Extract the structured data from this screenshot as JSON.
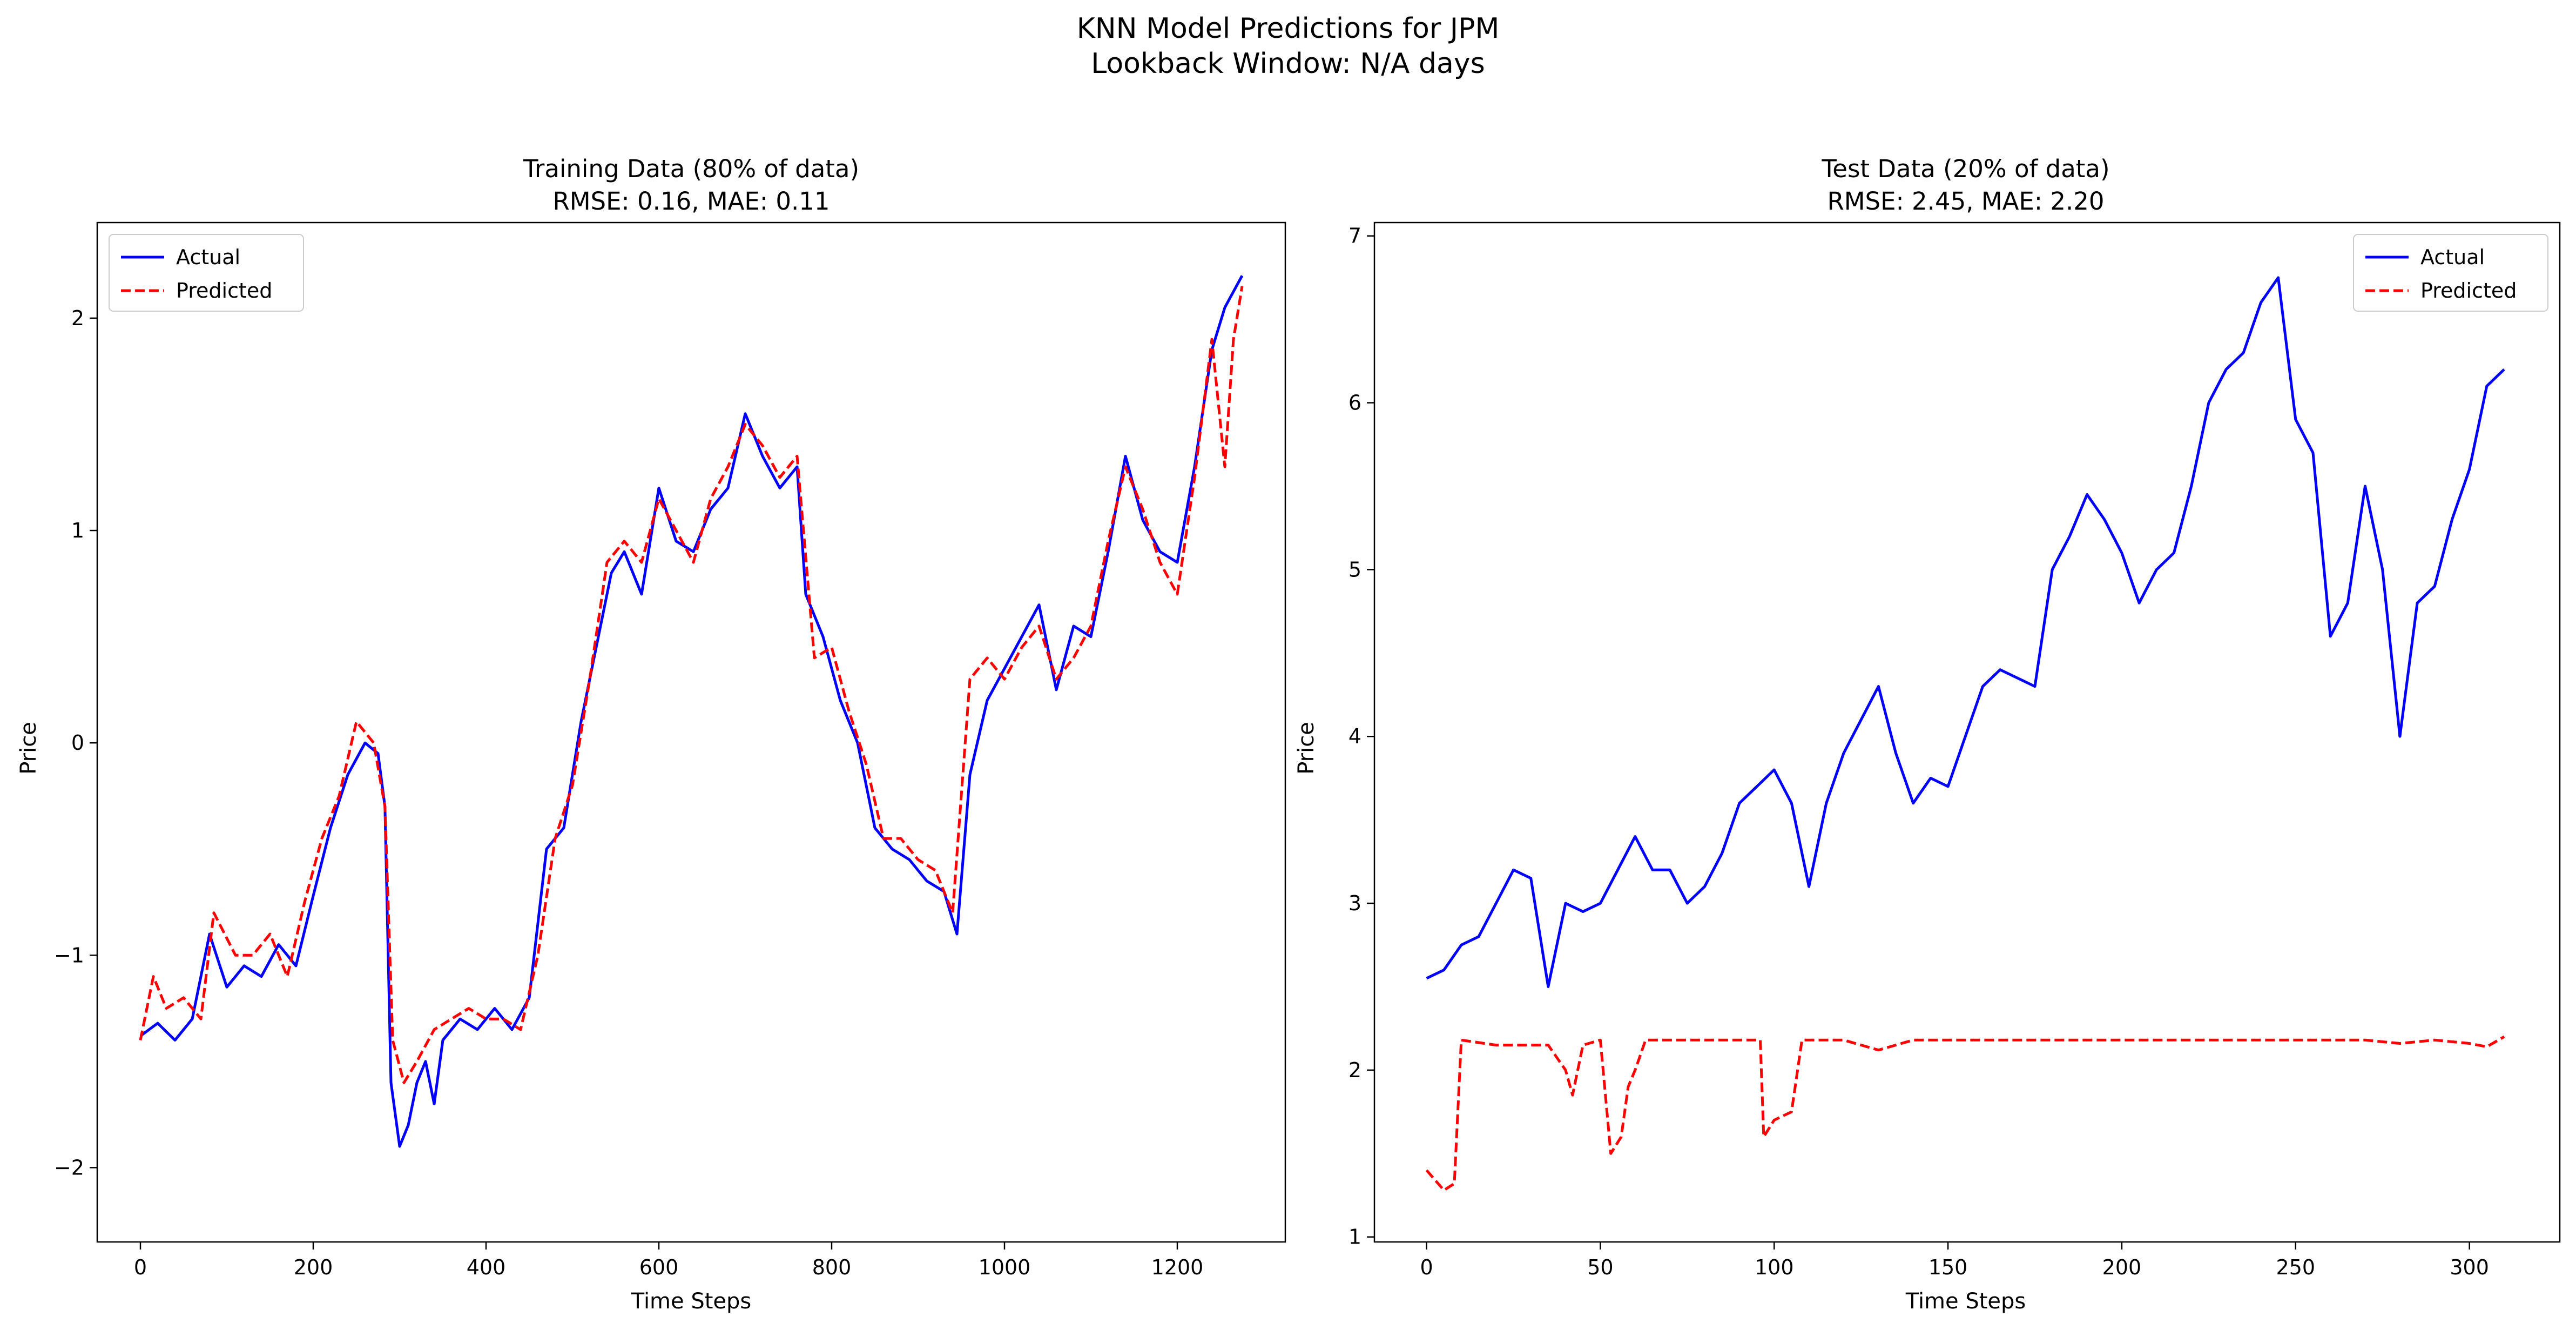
{
  "figure": {
    "title_line1": "KNN Model Predictions for JPM",
    "title_line2": "Lookback Window: N/A days"
  },
  "chart_data": [
    {
      "type": "line",
      "title_line1": "Training Data (80% of data)",
      "title_line2": "RMSE: 0.16, MAE: 0.11",
      "xlabel": "Time Steps",
      "ylabel": "Price",
      "xlim": [
        -50,
        1325
      ],
      "ylim": [
        -2.35,
        2.45
      ],
      "xticks": [
        0,
        200,
        400,
        600,
        800,
        1000,
        1200
      ],
      "yticks": [
        -2,
        -1,
        0,
        1,
        2
      ],
      "legend": {
        "placement": "top-left"
      },
      "grid": false,
      "series": [
        {
          "name": "Actual",
          "color": "#0000ff",
          "style": "solid",
          "points": [
            [
              0,
              -1.38
            ],
            [
              20,
              -1.32
            ],
            [
              40,
              -1.4
            ],
            [
              60,
              -1.3
            ],
            [
              80,
              -0.9
            ],
            [
              100,
              -1.15
            ],
            [
              120,
              -1.05
            ],
            [
              140,
              -1.1
            ],
            [
              160,
              -0.95
            ],
            [
              180,
              -1.05
            ],
            [
              200,
              -0.72
            ],
            [
              220,
              -0.4
            ],
            [
              240,
              -0.15
            ],
            [
              260,
              0.0
            ],
            [
              275,
              -0.05
            ],
            [
              283,
              -0.3
            ],
            [
              290,
              -1.6
            ],
            [
              300,
              -1.9
            ],
            [
              310,
              -1.8
            ],
            [
              320,
              -1.6
            ],
            [
              330,
              -1.5
            ],
            [
              340,
              -1.7
            ],
            [
              350,
              -1.4
            ],
            [
              370,
              -1.3
            ],
            [
              390,
              -1.35
            ],
            [
              410,
              -1.25
            ],
            [
              430,
              -1.35
            ],
            [
              450,
              -1.2
            ],
            [
              470,
              -0.5
            ],
            [
              490,
              -0.4
            ],
            [
              510,
              0.1
            ],
            [
              530,
              0.5
            ],
            [
              545,
              0.8
            ],
            [
              560,
              0.9
            ],
            [
              580,
              0.7
            ],
            [
              600,
              1.2
            ],
            [
              620,
              0.95
            ],
            [
              640,
              0.9
            ],
            [
              660,
              1.1
            ],
            [
              680,
              1.2
            ],
            [
              700,
              1.55
            ],
            [
              720,
              1.35
            ],
            [
              740,
              1.2
            ],
            [
              760,
              1.3
            ],
            [
              770,
              0.7
            ],
            [
              790,
              0.5
            ],
            [
              810,
              0.2
            ],
            [
              830,
              0.0
            ],
            [
              850,
              -0.4
            ],
            [
              870,
              -0.5
            ],
            [
              890,
              -0.55
            ],
            [
              910,
              -0.65
            ],
            [
              930,
              -0.7
            ],
            [
              945,
              -0.9
            ],
            [
              960,
              -0.15
            ],
            [
              980,
              0.2
            ],
            [
              1000,
              0.35
            ],
            [
              1020,
              0.5
            ],
            [
              1040,
              0.65
            ],
            [
              1060,
              0.25
            ],
            [
              1080,
              0.55
            ],
            [
              1100,
              0.5
            ],
            [
              1120,
              0.9
            ],
            [
              1140,
              1.35
            ],
            [
              1160,
              1.05
            ],
            [
              1180,
              0.9
            ],
            [
              1200,
              0.85
            ],
            [
              1220,
              1.3
            ],
            [
              1240,
              1.85
            ],
            [
              1255,
              2.05
            ],
            [
              1275,
              2.2
            ]
          ]
        },
        {
          "name": "Predicted",
          "color": "#ff0000",
          "style": "dashed",
          "points": [
            [
              0,
              -1.4
            ],
            [
              15,
              -1.1
            ],
            [
              30,
              -1.25
            ],
            [
              50,
              -1.2
            ],
            [
              70,
              -1.3
            ],
            [
              85,
              -0.8
            ],
            [
              110,
              -1.0
            ],
            [
              130,
              -1.0
            ],
            [
              150,
              -0.9
            ],
            [
              170,
              -1.1
            ],
            [
              190,
              -0.75
            ],
            [
              210,
              -0.45
            ],
            [
              230,
              -0.25
            ],
            [
              250,
              0.1
            ],
            [
              270,
              0.0
            ],
            [
              283,
              -0.3
            ],
            [
              292,
              -1.4
            ],
            [
              305,
              -1.6
            ],
            [
              320,
              -1.5
            ],
            [
              340,
              -1.35
            ],
            [
              360,
              -1.3
            ],
            [
              380,
              -1.25
            ],
            [
              400,
              -1.3
            ],
            [
              420,
              -1.3
            ],
            [
              440,
              -1.35
            ],
            [
              460,
              -1.0
            ],
            [
              480,
              -0.45
            ],
            [
              500,
              -0.2
            ],
            [
              520,
              0.3
            ],
            [
              540,
              0.85
            ],
            [
              560,
              0.95
            ],
            [
              580,
              0.85
            ],
            [
              600,
              1.15
            ],
            [
              620,
              1.0
            ],
            [
              640,
              0.85
            ],
            [
              660,
              1.15
            ],
            [
              680,
              1.3
            ],
            [
              700,
              1.5
            ],
            [
              720,
              1.4
            ],
            [
              740,
              1.25
            ],
            [
              760,
              1.35
            ],
            [
              780,
              0.4
            ],
            [
              800,
              0.45
            ],
            [
              820,
              0.15
            ],
            [
              840,
              -0.1
            ],
            [
              860,
              -0.45
            ],
            [
              880,
              -0.45
            ],
            [
              900,
              -0.55
            ],
            [
              920,
              -0.6
            ],
            [
              940,
              -0.8
            ],
            [
              960,
              0.3
            ],
            [
              980,
              0.4
            ],
            [
              1000,
              0.3
            ],
            [
              1020,
              0.45
            ],
            [
              1040,
              0.55
            ],
            [
              1060,
              0.3
            ],
            [
              1080,
              0.4
            ],
            [
              1100,
              0.55
            ],
            [
              1120,
              0.95
            ],
            [
              1140,
              1.3
            ],
            [
              1160,
              1.1
            ],
            [
              1180,
              0.85
            ],
            [
              1200,
              0.7
            ],
            [
              1220,
              1.25
            ],
            [
              1240,
              1.9
            ],
            [
              1255,
              1.3
            ],
            [
              1265,
              1.9
            ],
            [
              1275,
              2.15
            ]
          ]
        }
      ]
    },
    {
      "type": "line",
      "title_line1": "Test Data (20% of data)",
      "title_line2": "RMSE: 2.45, MAE: 2.20",
      "xlabel": "Time Steps",
      "ylabel": "Price",
      "xlim": [
        -15,
        326
      ],
      "ylim": [
        0.97,
        7.08
      ],
      "xticks": [
        0,
        50,
        100,
        150,
        200,
        250,
        300
      ],
      "yticks": [
        1,
        2,
        3,
        4,
        5,
        6,
        7
      ],
      "legend": {
        "placement": "top-right"
      },
      "grid": false,
      "series": [
        {
          "name": "Actual",
          "color": "#0000ff",
          "style": "solid",
          "points": [
            [
              0,
              2.55
            ],
            [
              5,
              2.6
            ],
            [
              10,
              2.75
            ],
            [
              15,
              2.8
            ],
            [
              20,
              3.0
            ],
            [
              25,
              3.2
            ],
            [
              30,
              3.15
            ],
            [
              35,
              2.5
            ],
            [
              40,
              3.0
            ],
            [
              45,
              2.95
            ],
            [
              50,
              3.0
            ],
            [
              55,
              3.2
            ],
            [
              60,
              3.4
            ],
            [
              65,
              3.2
            ],
            [
              70,
              3.2
            ],
            [
              75,
              3.0
            ],
            [
              80,
              3.1
            ],
            [
              85,
              3.3
            ],
            [
              90,
              3.6
            ],
            [
              95,
              3.7
            ],
            [
              100,
              3.8
            ],
            [
              105,
              3.6
            ],
            [
              110,
              3.1
            ],
            [
              115,
              3.6
            ],
            [
              120,
              3.9
            ],
            [
              125,
              4.1
            ],
            [
              130,
              4.3
            ],
            [
              135,
              3.9
            ],
            [
              140,
              3.6
            ],
            [
              145,
              3.75
            ],
            [
              150,
              3.7
            ],
            [
              155,
              4.0
            ],
            [
              160,
              4.3
            ],
            [
              165,
              4.4
            ],
            [
              170,
              4.35
            ],
            [
              175,
              4.3
            ],
            [
              180,
              5.0
            ],
            [
              185,
              5.2
            ],
            [
              190,
              5.45
            ],
            [
              195,
              5.3
            ],
            [
              200,
              5.1
            ],
            [
              205,
              4.8
            ],
            [
              210,
              5.0
            ],
            [
              215,
              5.1
            ],
            [
              220,
              5.5
            ],
            [
              225,
              6.0
            ],
            [
              230,
              6.2
            ],
            [
              235,
              6.3
            ],
            [
              240,
              6.6
            ],
            [
              245,
              6.75
            ],
            [
              250,
              5.9
            ],
            [
              255,
              5.7
            ],
            [
              260,
              4.6
            ],
            [
              265,
              4.8
            ],
            [
              270,
              5.5
            ],
            [
              275,
              5.0
            ],
            [
              280,
              4.0
            ],
            [
              285,
              4.8
            ],
            [
              290,
              4.9
            ],
            [
              295,
              5.3
            ],
            [
              300,
              5.6
            ],
            [
              305,
              6.1
            ],
            [
              310,
              6.2
            ]
          ]
        },
        {
          "name": "Predicted",
          "color": "#ff0000",
          "style": "dashed",
          "points": [
            [
              0,
              1.4
            ],
            [
              5,
              1.28
            ],
            [
              8,
              1.32
            ],
            [
              10,
              2.18
            ],
            [
              20,
              2.15
            ],
            [
              30,
              2.15
            ],
            [
              35,
              2.15
            ],
            [
              40,
              2.0
            ],
            [
              42,
              1.85
            ],
            [
              45,
              2.15
            ],
            [
              50,
              2.18
            ],
            [
              53,
              1.5
            ],
            [
              56,
              1.6
            ],
            [
              58,
              1.9
            ],
            [
              60,
              2.0
            ],
            [
              63,
              2.18
            ],
            [
              70,
              2.18
            ],
            [
              80,
              2.18
            ],
            [
              90,
              2.18
            ],
            [
              96,
              2.18
            ],
            [
              97,
              1.6
            ],
            [
              100,
              1.7
            ],
            [
              105,
              1.75
            ],
            [
              108,
              2.18
            ],
            [
              120,
              2.18
            ],
            [
              130,
              2.12
            ],
            [
              140,
              2.18
            ],
            [
              150,
              2.18
            ],
            [
              160,
              2.18
            ],
            [
              170,
              2.18
            ],
            [
              180,
              2.18
            ],
            [
              190,
              2.18
            ],
            [
              200,
              2.18
            ],
            [
              210,
              2.18
            ],
            [
              220,
              2.18
            ],
            [
              230,
              2.18
            ],
            [
              240,
              2.18
            ],
            [
              250,
              2.18
            ],
            [
              260,
              2.18
            ],
            [
              270,
              2.18
            ],
            [
              280,
              2.16
            ],
            [
              290,
              2.18
            ],
            [
              300,
              2.16
            ],
            [
              305,
              2.14
            ],
            [
              310,
              2.2
            ]
          ]
        }
      ]
    }
  ]
}
